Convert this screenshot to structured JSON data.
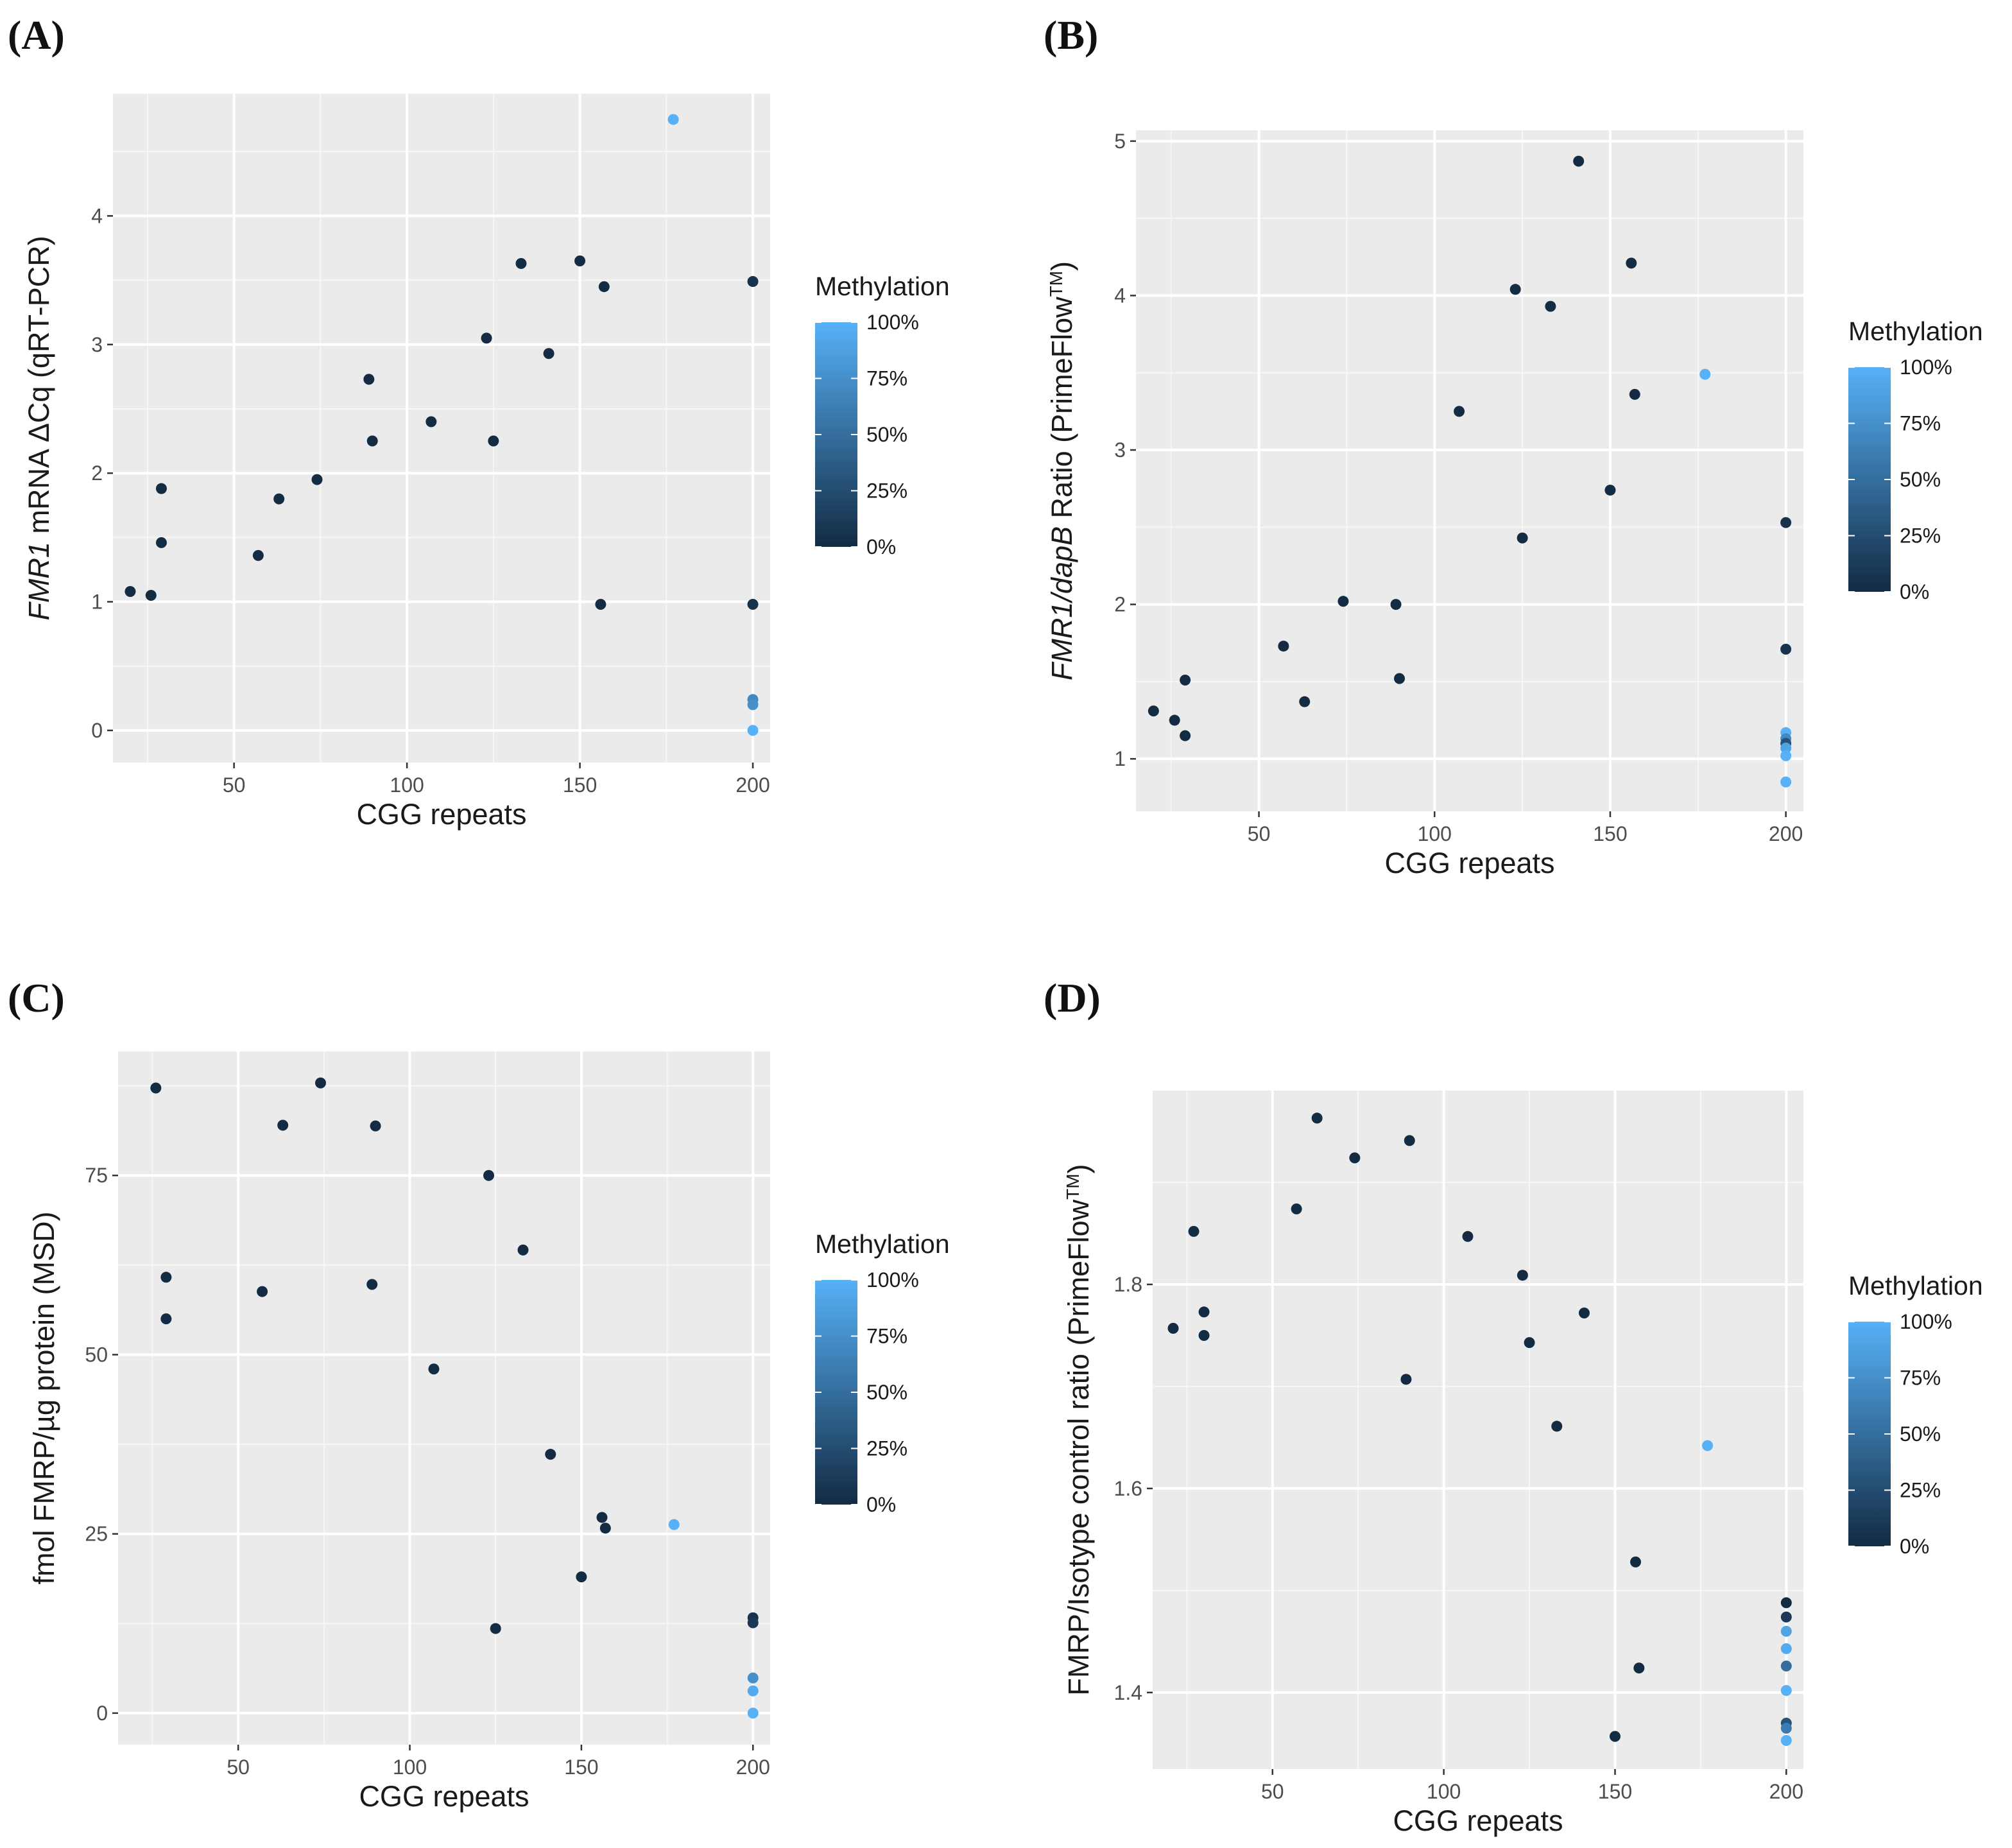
{
  "legend": {
    "title": "Methylation",
    "labels": [
      "100%",
      "75%",
      "50%",
      "25%",
      "0%"
    ],
    "color_low": "#132B43",
    "color_high": "#56B1F7"
  },
  "chart_data": [
    {
      "panel": "(A)",
      "type": "scatter",
      "xlabel": "CGG repeats",
      "ylabel_italic": "FMR1",
      "ylabel_rest": " mRNA ΔCq (qRT-PCR)",
      "xlim": [
        15,
        205
      ],
      "ylim": [
        -0.25,
        4.95
      ],
      "xticks": [
        50,
        100,
        150,
        200
      ],
      "yticks": [
        0,
        1,
        2,
        3,
        4
      ],
      "xtick_labels": [
        "50",
        "100",
        "150",
        "200"
      ],
      "ytick_labels": [
        "0",
        "1",
        "2",
        "3",
        "4"
      ],
      "points": [
        {
          "x": 20,
          "y": 1.08,
          "m": 0
        },
        {
          "x": 26,
          "y": 1.05,
          "m": 0
        },
        {
          "x": 29,
          "y": 1.46,
          "m": 0
        },
        {
          "x": 29,
          "y": 1.88,
          "m": 0
        },
        {
          "x": 57,
          "y": 1.36,
          "m": 0
        },
        {
          "x": 63,
          "y": 1.8,
          "m": 0
        },
        {
          "x": 74,
          "y": 1.95,
          "m": 0
        },
        {
          "x": 89,
          "y": 2.73,
          "m": 0
        },
        {
          "x": 90,
          "y": 2.25,
          "m": 0
        },
        {
          "x": 107,
          "y": 2.4,
          "m": 0
        },
        {
          "x": 123,
          "y": 3.05,
          "m": 0
        },
        {
          "x": 125,
          "y": 2.25,
          "m": 0
        },
        {
          "x": 133,
          "y": 3.63,
          "m": 0
        },
        {
          "x": 141,
          "y": 2.93,
          "m": 0
        },
        {
          "x": 150,
          "y": 3.65,
          "m": 0
        },
        {
          "x": 156,
          "y": 0.98,
          "m": 0
        },
        {
          "x": 157,
          "y": 3.45,
          "m": 0
        },
        {
          "x": 177,
          "y": 4.75,
          "m": 1.0
        },
        {
          "x": 200,
          "y": 3.49,
          "m": 0.05
        },
        {
          "x": 200,
          "y": 0.98,
          "m": 0.05
        },
        {
          "x": 200,
          "y": 0.24,
          "m": 0.7
        },
        {
          "x": 200,
          "y": 0.2,
          "m": 0.75
        },
        {
          "x": 200,
          "y": 0.0,
          "m": 1.0
        }
      ]
    },
    {
      "panel": "(B)",
      "type": "scatter",
      "xlabel": "CGG repeats",
      "ylabel_italic": "FMR1/dapB",
      "ylabel_rest": " Ratio (PrimeFlow",
      "ylabel_sup": "TM",
      "ylabel_end": ")",
      "xlim": [
        15,
        205
      ],
      "ylim": [
        0.66,
        5.07
      ],
      "xticks": [
        50,
        100,
        150,
        200
      ],
      "yticks": [
        1,
        2,
        3,
        4,
        5
      ],
      "xtick_labels": [
        "50",
        "100",
        "150",
        "200"
      ],
      "ytick_labels": [
        "1",
        "2",
        "3",
        "4",
        "5"
      ],
      "points": [
        {
          "x": 20,
          "y": 1.31,
          "m": 0
        },
        {
          "x": 26,
          "y": 1.25,
          "m": 0
        },
        {
          "x": 29,
          "y": 1.15,
          "m": 0
        },
        {
          "x": 29,
          "y": 1.51,
          "m": 0
        },
        {
          "x": 57,
          "y": 1.73,
          "m": 0
        },
        {
          "x": 63,
          "y": 1.37,
          "m": 0
        },
        {
          "x": 74,
          "y": 2.02,
          "m": 0
        },
        {
          "x": 89,
          "y": 2.0,
          "m": 0
        },
        {
          "x": 90,
          "y": 1.52,
          "m": 0
        },
        {
          "x": 107,
          "y": 3.25,
          "m": 0
        },
        {
          "x": 123,
          "y": 4.04,
          "m": 0
        },
        {
          "x": 125,
          "y": 2.43,
          "m": 0
        },
        {
          "x": 133,
          "y": 3.93,
          "m": 0
        },
        {
          "x": 141,
          "y": 4.87,
          "m": 0
        },
        {
          "x": 150,
          "y": 2.74,
          "m": 0
        },
        {
          "x": 156,
          "y": 4.21,
          "m": 0
        },
        {
          "x": 157,
          "y": 3.36,
          "m": 0
        },
        {
          "x": 177,
          "y": 3.49,
          "m": 1.0
        },
        {
          "x": 200,
          "y": 2.53,
          "m": 0.05
        },
        {
          "x": 200,
          "y": 1.71,
          "m": 0.05
        },
        {
          "x": 200,
          "y": 1.17,
          "m": 1.0
        },
        {
          "x": 200,
          "y": 1.13,
          "m": 0.7
        },
        {
          "x": 200,
          "y": 1.1,
          "m": 0.3
        },
        {
          "x": 200,
          "y": 1.07,
          "m": 0.9
        },
        {
          "x": 200,
          "y": 1.02,
          "m": 1.0
        },
        {
          "x": 200,
          "y": 0.85,
          "m": 1.0
        }
      ]
    },
    {
      "panel": "(C)",
      "type": "scatter",
      "xlabel": "CGG repeats",
      "ylabel": "fmol FMRP/µg protein (MSD)",
      "xlim": [
        15,
        205
      ],
      "ylim": [
        -4.4,
        92.3
      ],
      "xticks": [
        50,
        100,
        150,
        200
      ],
      "yticks": [
        0,
        25,
        50,
        75
      ],
      "xtick_labels": [
        "50",
        "100",
        "150",
        "200"
      ],
      "ytick_labels": [
        "0",
        "25",
        "50",
        "75"
      ],
      "points": [
        {
          "x": 26,
          "y": 87.2,
          "m": 0
        },
        {
          "x": 29,
          "y": 60.8,
          "m": 0
        },
        {
          "x": 29,
          "y": 55.0,
          "m": 0
        },
        {
          "x": 57,
          "y": 58.8,
          "m": 0
        },
        {
          "x": 63,
          "y": 82.0,
          "m": 0
        },
        {
          "x": 74,
          "y": 87.9,
          "m": 0
        },
        {
          "x": 89,
          "y": 59.8,
          "m": 0
        },
        {
          "x": 90,
          "y": 81.9,
          "m": 0
        },
        {
          "x": 107,
          "y": 48.0,
          "m": 0
        },
        {
          "x": 123,
          "y": 75.0,
          "m": 0
        },
        {
          "x": 125,
          "y": 11.8,
          "m": 0
        },
        {
          "x": 133,
          "y": 64.6,
          "m": 0
        },
        {
          "x": 141,
          "y": 36.1,
          "m": 0
        },
        {
          "x": 150,
          "y": 19.0,
          "m": 0
        },
        {
          "x": 156,
          "y": 27.3,
          "m": 0
        },
        {
          "x": 157,
          "y": 25.8,
          "m": 0
        },
        {
          "x": 177,
          "y": 26.3,
          "m": 1.0
        },
        {
          "x": 200,
          "y": 13.3,
          "m": 0.05
        },
        {
          "x": 200,
          "y": 12.6,
          "m": 0.1
        },
        {
          "x": 200,
          "y": 4.9,
          "m": 0.75
        },
        {
          "x": 200,
          "y": 3.1,
          "m": 0.95
        },
        {
          "x": 200,
          "y": 0.0,
          "m": 1.0
        }
      ]
    },
    {
      "panel": "(D)",
      "type": "scatter",
      "xlabel": "CGG repeats",
      "ylabel": "FMRP/Isotype control ratio (PrimeFlow",
      "ylabel_sup": "TM",
      "ylabel_end": ")",
      "xlim": [
        15,
        205
      ],
      "ylim": [
        1.325,
        1.99
      ],
      "xticks": [
        50,
        100,
        150,
        200
      ],
      "yticks": [
        1.4,
        1.6,
        1.8
      ],
      "xtick_labels": [
        "50",
        "100",
        "150",
        "200"
      ],
      "ytick_labels": [
        "1.4",
        "1.6",
        "1.8"
      ],
      "points": [
        {
          "x": 21,
          "y": 1.757,
          "m": 0
        },
        {
          "x": 27,
          "y": 1.852,
          "m": 0
        },
        {
          "x": 30,
          "y": 1.773,
          "m": 0
        },
        {
          "x": 30,
          "y": 1.75,
          "m": 0
        },
        {
          "x": 57,
          "y": 1.874,
          "m": 0
        },
        {
          "x": 63,
          "y": 1.963,
          "m": 0
        },
        {
          "x": 74,
          "y": 1.924,
          "m": 0
        },
        {
          "x": 89,
          "y": 1.707,
          "m": 0
        },
        {
          "x": 90,
          "y": 1.941,
          "m": 0
        },
        {
          "x": 107,
          "y": 1.847,
          "m": 0
        },
        {
          "x": 123,
          "y": 1.809,
          "m": 0
        },
        {
          "x": 125,
          "y": 1.743,
          "m": 0
        },
        {
          "x": 133,
          "y": 1.661,
          "m": 0
        },
        {
          "x": 141,
          "y": 1.772,
          "m": 0
        },
        {
          "x": 150,
          "y": 1.357,
          "m": 0
        },
        {
          "x": 156,
          "y": 1.528,
          "m": 0
        },
        {
          "x": 157,
          "y": 1.424,
          "m": 0
        },
        {
          "x": 177,
          "y": 1.642,
          "m": 1.0
        },
        {
          "x": 200,
          "y": 1.488,
          "m": 0.0
        },
        {
          "x": 200,
          "y": 1.474,
          "m": 0.1
        },
        {
          "x": 200,
          "y": 1.46,
          "m": 0.9
        },
        {
          "x": 200,
          "y": 1.443,
          "m": 0.95
        },
        {
          "x": 200,
          "y": 1.426,
          "m": 0.5
        },
        {
          "x": 200,
          "y": 1.402,
          "m": 1.0
        },
        {
          "x": 200,
          "y": 1.37,
          "m": 0.3
        },
        {
          "x": 200,
          "y": 1.365,
          "m": 0.6
        },
        {
          "x": 200,
          "y": 1.353,
          "m": 1.0
        }
      ]
    }
  ]
}
